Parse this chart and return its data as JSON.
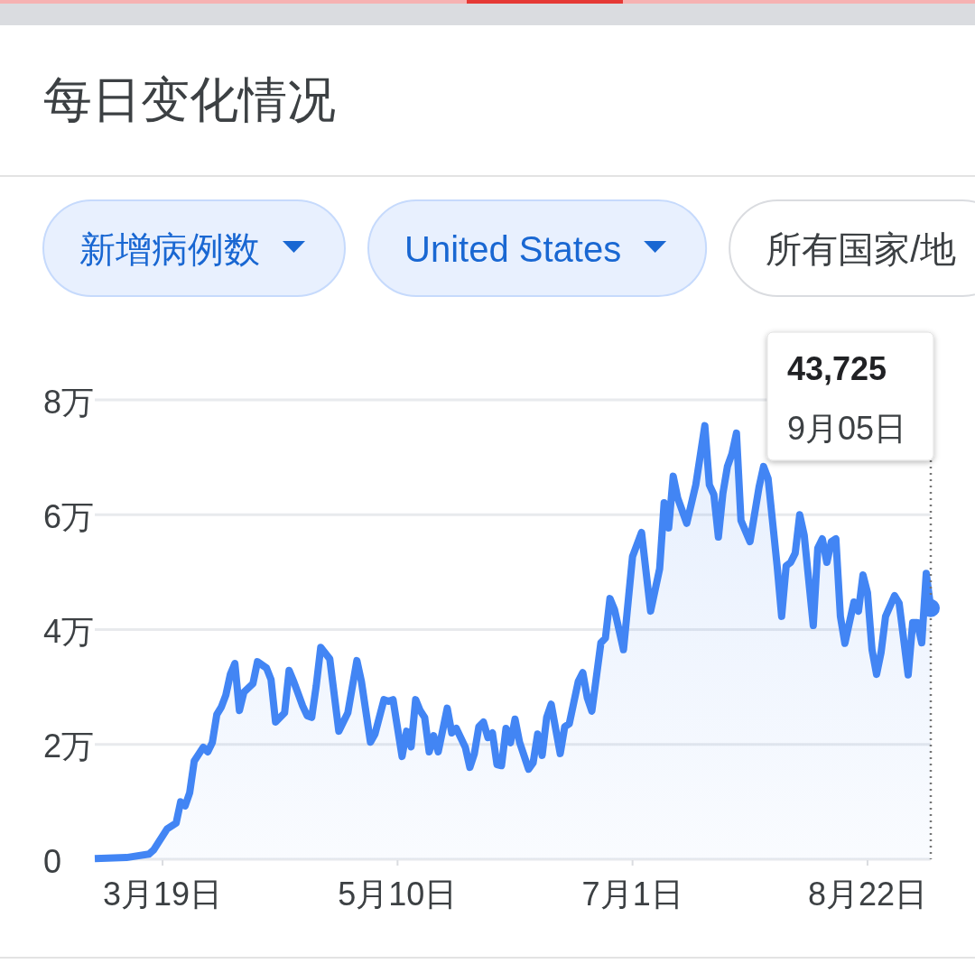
{
  "chart_data": {
    "type": "area",
    "title": "每日变化情况",
    "annotations": [
      "新增病例数",
      "United States",
      "所有国家/地",
      "43,725",
      "9月05日"
    ],
    "x": [
      "--03-04",
      "--03-11",
      "--03-16",
      "--03-17",
      "--03-20",
      "--03-22",
      "--03-23",
      "--03-24",
      "--03-25",
      "--03-26",
      "--03-28",
      "--03-29",
      "--03-30",
      "--03-31",
      "--04-01",
      "--04-02",
      "--04-03",
      "--04-04",
      "--04-05",
      "--04-06",
      "--04-08",
      "--04-09",
      "--04-11",
      "--04-12",
      "--04-13",
      "--04-15",
      "--04-16",
      "--04-17",
      "--04-19",
      "--04-20",
      "--04-21",
      "--04-22",
      "--04-23",
      "--04-25",
      "--04-27",
      "--04-29",
      "--05-01",
      "--05-02",
      "--05-04",
      "--05-05",
      "--05-07",
      "--05-08",
      "--05-09",
      "--05-11",
      "--05-12",
      "--05-13",
      "--05-14",
      "--05-15",
      "--05-16",
      "--05-17",
      "--05-18",
      "--05-19",
      "--05-21",
      "--05-22",
      "--05-23",
      "--05-25",
      "--05-26",
      "--05-27",
      "--05-28",
      "--05-29",
      "--05-30",
      "--05-31",
      "--06-01",
      "--06-02",
      "--06-03",
      "--06-04",
      "--06-05",
      "--06-06",
      "--06-08",
      "--06-09",
      "--06-10",
      "--06-11",
      "--06-12",
      "--06-13",
      "--06-15",
      "--06-16",
      "--06-17",
      "--06-19",
      "--06-20",
      "--06-21",
      "--06-22",
      "--06-24",
      "--06-25",
      "--06-26",
      "--06-27",
      "--06-29",
      "--07-01",
      "--07-03",
      "--07-05",
      "--07-07",
      "--07-08",
      "--07-09",
      "--07-10",
      "--07-11",
      "--07-13",
      "--07-15",
      "--07-17",
      "--07-18",
      "--07-19",
      "--07-20",
      "--07-21",
      "--07-22",
      "--07-23",
      "--07-24",
      "--07-25",
      "--07-27",
      "--07-29",
      "--07-30",
      "--07-31",
      "--08-02",
      "--08-03",
      "--08-04",
      "--08-05",
      "--08-06",
      "--08-07",
      "--08-08",
      "--08-10",
      "--08-11",
      "--08-12",
      "--08-13",
      "--08-14",
      "--08-15",
      "--08-16",
      "--08-17",
      "--08-19",
      "--08-20",
      "--08-21",
      "--08-22",
      "--08-23",
      "--08-24",
      "--08-25",
      "--08-26",
      "--08-28",
      "--08-29",
      "--08-31",
      "--09-01",
      "--09-02",
      "--09-03",
      "--09-04",
      "--09-05"
    ],
    "series": [
      {
        "color": "#4285f4",
        "values": [
          0.01,
          0.03,
          0.09,
          0.16,
          0.53,
          0.63,
          1.0,
          0.93,
          1.16,
          1.71,
          1.95,
          1.87,
          2.03,
          2.52,
          2.65,
          2.86,
          3.22,
          3.41,
          2.59,
          2.91,
          3.06,
          3.44,
          3.33,
          3.13,
          2.39,
          2.55,
          3.29,
          3.1,
          2.67,
          2.5,
          2.47,
          3.02,
          3.69,
          3.49,
          2.23,
          2.55,
          3.46,
          3.1,
          2.04,
          2.18,
          2.78,
          2.75,
          2.78,
          1.79,
          2.23,
          1.96,
          2.78,
          2.59,
          2.47,
          1.87,
          2.15,
          1.87,
          2.63,
          2.2,
          2.28,
          1.95,
          1.6,
          1.84,
          2.31,
          2.39,
          2.12,
          2.2,
          1.65,
          1.63,
          2.28,
          2.03,
          2.44,
          2.04,
          1.57,
          1.68,
          2.18,
          1.81,
          2.47,
          2.7,
          1.84,
          2.31,
          2.36,
          3.1,
          3.25,
          2.81,
          2.58,
          3.77,
          3.85,
          4.54,
          4.35,
          3.65,
          5.27,
          5.69,
          4.32,
          5.06,
          6.21,
          5.77,
          6.67,
          6.29,
          5.85,
          6.52,
          7.55,
          6.52,
          6.35,
          5.61,
          6.37,
          6.84,
          7.06,
          7.42,
          5.9,
          5.53,
          6.48,
          6.84,
          6.63,
          5.11,
          4.23,
          5.11,
          5.17,
          5.33,
          6.0,
          5.64,
          4.07,
          5.42,
          5.58,
          5.17,
          5.53,
          5.58,
          4.23,
          3.76,
          4.48,
          4.32,
          4.95,
          4.64,
          3.65,
          3.22,
          3.6,
          4.23,
          4.59,
          4.46,
          3.21,
          4.12,
          4.12,
          3.77,
          4.98,
          4.3725
        ]
      },
      {
        "type": "scatter",
        "color": "#4285f4",
        "x": [
          "--09-05"
        ],
        "values": [
          4.3725
        ]
      }
    ],
    "xlim": [
      "--03-04",
      "--09-05"
    ],
    "ylim": [
      0,
      8
    ],
    "xticks": [
      {
        "value": "--03-19",
        "label": "3月19日"
      },
      {
        "value": "--05-10",
        "label": "5月10日"
      },
      {
        "value": "--07-01",
        "label": "7月1日"
      },
      {
        "value": "--08-22",
        "label": "8月22日"
      }
    ],
    "yticks": [
      0,
      {
        "value": 2,
        "label": "2万"
      },
      {
        "value": 4,
        "label": "4万"
      },
      {
        "value": 6,
        "label": "6万"
      },
      {
        "value": 8,
        "label": "8万"
      }
    ],
    "grid": "y",
    "line_style": "solid",
    "ref_lines": [
      {
        "axis": "x",
        "value": "--09-05",
        "line_style": "dotted",
        "color": "#757575"
      }
    ]
  }
}
